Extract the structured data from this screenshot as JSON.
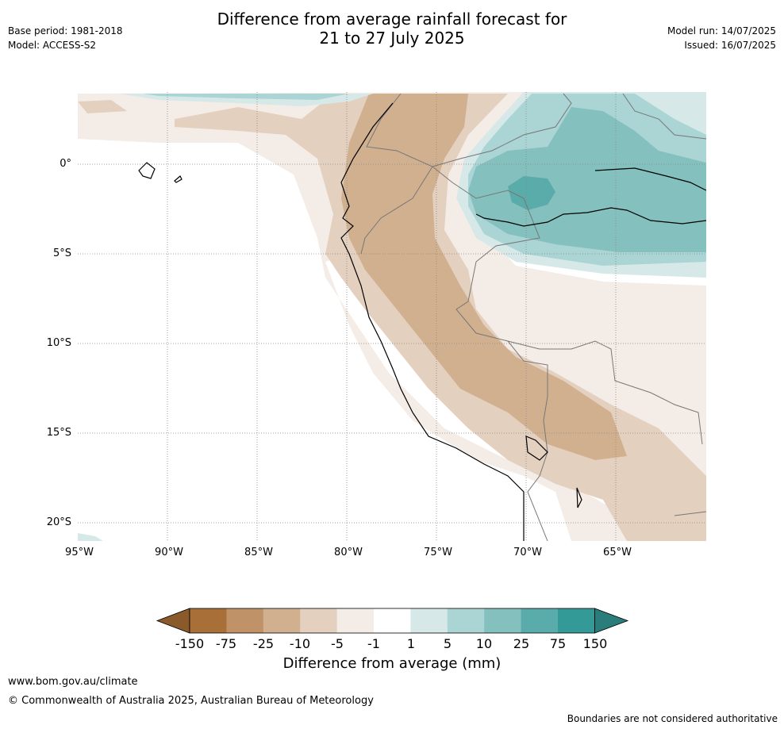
{
  "header": {
    "title_line1": "Difference from average rainfall forecast for",
    "title_line2": "21 to 27 July 2025",
    "base_period": "Base period: 1981-2018",
    "model": "Model: ACCESS-S2",
    "model_run": "Model run: 14/07/2025",
    "issued": "Issued: 16/07/2025"
  },
  "map": {
    "lat_labels": [
      "0°",
      "5°S",
      "10°S",
      "15°S",
      "20°S"
    ],
    "lon_labels": [
      "95°W",
      "90°W",
      "85°W",
      "80°W",
      "75°W",
      "70°W",
      "65°W"
    ]
  },
  "colorbar": {
    "label": "Difference from average (mm)",
    "ticks": [
      "-150",
      "-75",
      "-25",
      "-10",
      "-5",
      "-1",
      "1",
      "5",
      "10",
      "25",
      "75",
      "150"
    ],
    "colors": [
      "#8b5a2b",
      "#a87038",
      "#c09268",
      "#d1b090",
      "#e4d0bf",
      "#f4ece6",
      "#ffffff",
      "#d6e9e8",
      "#abd5d4",
      "#84c0be",
      "#5aacaa",
      "#349a98",
      "#2a7d7b"
    ]
  },
  "footer": {
    "url": "www.bom.gov.au/climate",
    "copyright": "© Commonwealth of Australia 2025, Australian Bureau of Meteorology",
    "note": "Boundaries are not considered authoritative"
  }
}
